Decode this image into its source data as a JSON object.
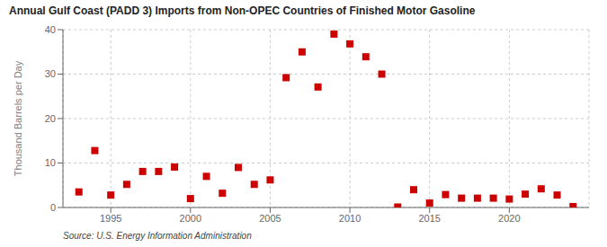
{
  "chart_data": {
    "type": "scatter",
    "title": "Annual Gulf Coast (PADD 3) Imports from Non-OPEC Countries of Finished Motor Gasoline",
    "ylabel": "Thousand Barrels per Day",
    "annotations": [
      "Source: U.S. Energy Information Administration"
    ],
    "x": [
      1993,
      1994,
      1995,
      1996,
      1997,
      1998,
      1999,
      2000,
      2001,
      2002,
      2003,
      2004,
      2005,
      2006,
      2007,
      2008,
      2009,
      2010,
      2011,
      2012,
      2013,
      2014,
      2015,
      2016,
      2017,
      2018,
      2019,
      2020,
      2021,
      2022,
      2023,
      2024
    ],
    "values": [
      3.5,
      12.8,
      2.8,
      5.2,
      8.1,
      8.1,
      9.1,
      2.0,
      7.0,
      3.2,
      9.0,
      5.2,
      6.2,
      29.2,
      35.0,
      27.1,
      39.0,
      36.8,
      33.9,
      30.0,
      0.1,
      4.0,
      1.0,
      2.9,
      2.1,
      2.1,
      2.1,
      1.9,
      3.0,
      4.2,
      2.8,
      0.2
    ],
    "color": "#cc0000",
    "marker": "square",
    "xlim": [
      1992.0,
      2025.0
    ],
    "ylim": [
      0,
      40
    ],
    "xticks": [
      1995,
      2000,
      2005,
      2010,
      2015,
      2020
    ],
    "yticks": [
      0,
      10,
      20,
      30,
      40
    ],
    "grid": true
  }
}
